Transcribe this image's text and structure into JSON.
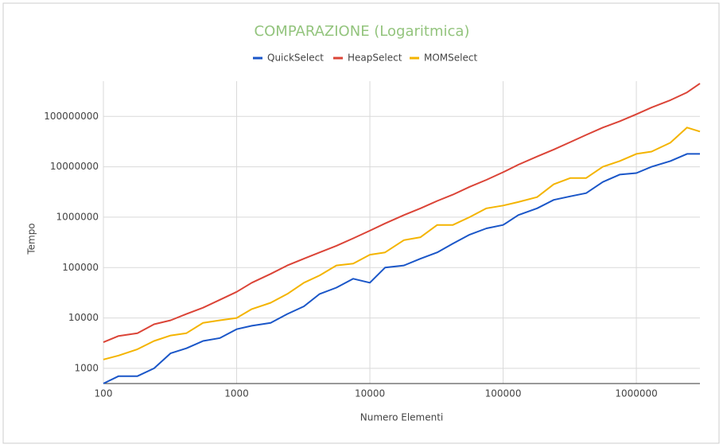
{
  "chart_data": {
    "type": "line",
    "title": "COMPARAZIONE (Logaritmica)",
    "xlabel": "Numero Elementi",
    "ylabel": "Tempo",
    "xscale": "log",
    "yscale": "log",
    "grid": true,
    "legend": "top",
    "xlim": [
      100,
      3000000
    ],
    "ylim": [
      500,
      500000000
    ],
    "xticks": [
      100,
      1000,
      10000,
      100000,
      1000000
    ],
    "yticks": [
      1000,
      10000,
      100000,
      1000000,
      10000000,
      100000000
    ],
    "x": [
      100,
      130,
      180,
      240,
      320,
      420,
      560,
      750,
      1000,
      1300,
      1800,
      2400,
      3200,
      4200,
      5600,
      7500,
      10000,
      13000,
      18000,
      24000,
      32000,
      42000,
      56000,
      75000,
      100000,
      130000,
      180000,
      240000,
      320000,
      420000,
      560000,
      750000,
      1000000,
      1300000,
      1800000,
      2400000,
      3000000
    ],
    "series": [
      {
        "name": "QuickSelect",
        "color": "#1a56c8",
        "values": [
          500,
          700,
          700,
          1000,
          2000,
          2500,
          3500,
          4000,
          6000,
          7000,
          8000,
          12000,
          17000,
          30000,
          40000,
          60000,
          50000,
          100000,
          110000,
          150000,
          200000,
          300000,
          450000,
          600000,
          700000,
          1100000,
          1500000,
          2200000,
          2600000,
          3000000,
          5000000,
          7000000,
          7500000,
          10000000,
          13000000,
          18000000,
          18000000
        ]
      },
      {
        "name": "HeapSelect",
        "color": "#db4437",
        "values": [
          3300,
          4400,
          5000,
          7500,
          9000,
          12000,
          16000,
          23000,
          33000,
          50000,
          75000,
          110000,
          150000,
          200000,
          270000,
          380000,
          540000,
          750000,
          1100000,
          1500000,
          2100000,
          2800000,
          4000000,
          5500000,
          7800000,
          11000000,
          16000000,
          22000000,
          31000000,
          43000000,
          60000000,
          80000000,
          110000000,
          150000000,
          210000000,
          300000000,
          450000000
        ]
      },
      {
        "name": "MOMSelect",
        "color": "#f4b400",
        "values": [
          1500,
          1800,
          2400,
          3500,
          4500,
          5000,
          8000,
          9000,
          10000,
          15000,
          20000,
          30000,
          50000,
          70000,
          110000,
          120000,
          180000,
          200000,
          350000,
          400000,
          700000,
          700000,
          1000000,
          1500000,
          1700000,
          2000000,
          2500000,
          4500000,
          6000000,
          6000000,
          10000000,
          13000000,
          18000000,
          20000000,
          30000000,
          60000000,
          50000000
        ]
      }
    ]
  }
}
